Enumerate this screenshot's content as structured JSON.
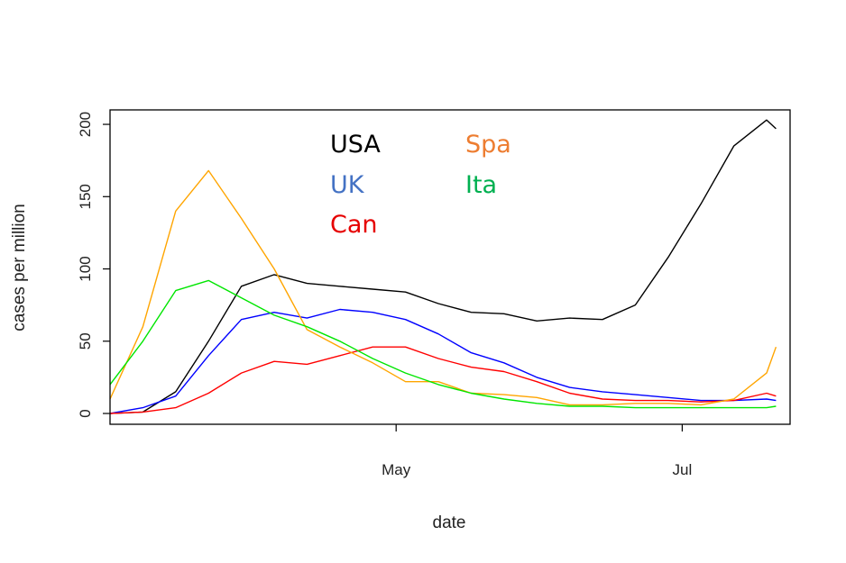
{
  "chart_data": {
    "type": "line",
    "title": "",
    "xlabel": "date",
    "ylabel": "cases per million",
    "x_ticks": [
      "May",
      "Jul"
    ],
    "y_ticks": [
      0,
      50,
      100,
      150,
      200
    ],
    "xlim": [
      "2020-03-01",
      "2020-07-24"
    ],
    "ylim": [
      0,
      210
    ],
    "grid": false,
    "legend_position": "top-center",
    "x": [
      "2020-03-01",
      "2020-03-08",
      "2020-03-15",
      "2020-03-22",
      "2020-03-29",
      "2020-04-05",
      "2020-04-12",
      "2020-04-19",
      "2020-04-26",
      "2020-05-03",
      "2020-05-10",
      "2020-05-17",
      "2020-05-24",
      "2020-05-31",
      "2020-06-07",
      "2020-06-14",
      "2020-06-21",
      "2020-06-28",
      "2020-07-05",
      "2020-07-12",
      "2020-07-19",
      "2020-07-21"
    ],
    "series": [
      {
        "name": "USA",
        "color": "#000000",
        "values": [
          0,
          1,
          15,
          50,
          88,
          96,
          90,
          88,
          86,
          84,
          76,
          70,
          69,
          64,
          66,
          65,
          75,
          108,
          145,
          185,
          203,
          197
        ]
      },
      {
        "name": "UK",
        "color": "#0000ff",
        "values": [
          0,
          4,
          12,
          40,
          65,
          70,
          66,
          72,
          70,
          65,
          55,
          42,
          35,
          25,
          18,
          15,
          13,
          11,
          9,
          9,
          10,
          9
        ]
      },
      {
        "name": "Can",
        "color": "#ff0000",
        "values": [
          0,
          1,
          4,
          14,
          28,
          36,
          34,
          40,
          46,
          46,
          38,
          32,
          29,
          22,
          14,
          10,
          9,
          9,
          8,
          9,
          14,
          12
        ]
      },
      {
        "name": "Spa",
        "color": "#ffa500",
        "values": [
          10,
          60,
          140,
          168,
          135,
          100,
          58,
          46,
          35,
          22,
          22,
          14,
          13,
          11,
          6,
          6,
          7,
          7,
          6,
          10,
          28,
          46
        ]
      },
      {
        "name": "Ita",
        "color": "#00e600",
        "values": [
          20,
          50,
          85,
          92,
          80,
          68,
          60,
          50,
          38,
          28,
          20,
          14,
          10,
          7,
          5,
          5,
          4,
          4,
          4,
          4,
          4,
          5
        ]
      }
    ]
  },
  "legend": [
    {
      "label": "USA",
      "color": "#000000"
    },
    {
      "label": "UK",
      "color": "#4472c4"
    },
    {
      "label": "Can",
      "color": "#e60000"
    },
    {
      "label": "Spa",
      "color": "#ed7d31"
    },
    {
      "label": "Ita",
      "color": "#00b050"
    }
  ]
}
